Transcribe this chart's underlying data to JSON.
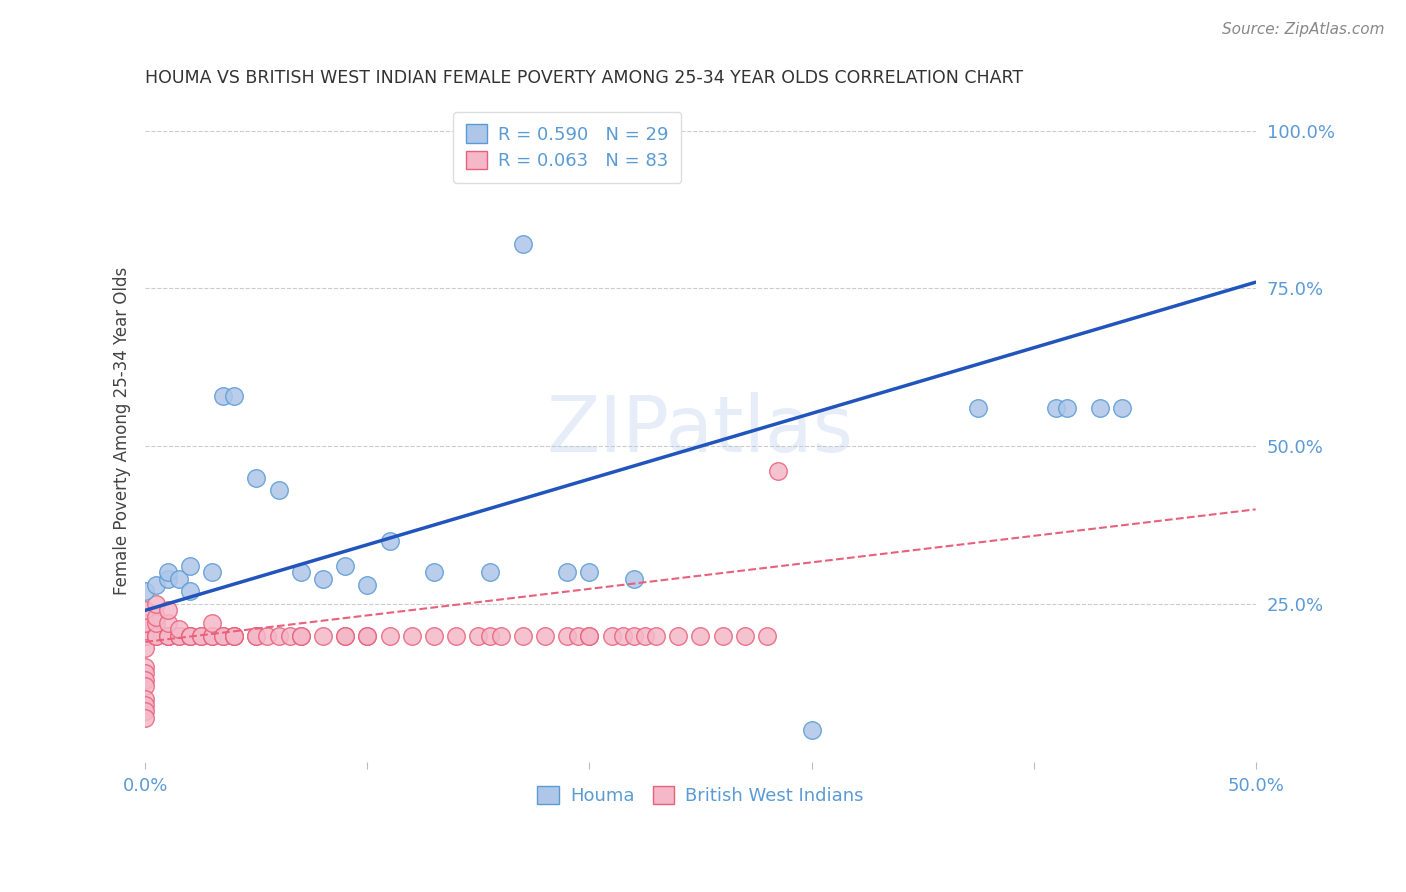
{
  "title": "HOUMA VS BRITISH WEST INDIAN FEMALE POVERTY AMONG 25-34 YEAR OLDS CORRELATION CHART",
  "source": "Source: ZipAtlas.com",
  "ylabel": "Female Poverty Among 25-34 Year Olds",
  "xlim": [
    0.0,
    0.5
  ],
  "ylim": [
    0.0,
    1.05
  ],
  "grid_color": "#cccccc",
  "houma_color": "#aec6e8",
  "houma_edge_color": "#5b9bd5",
  "bwi_color": "#f4b8c8",
  "bwi_edge_color": "#e8607a",
  "houma_line_color": "#2255bb",
  "bwi_line_color": "#e8607a",
  "tick_color": "#5b9bd5",
  "axis_label_color": "#444444",
  "title_color": "#333333",
  "source_color": "#888888",
  "watermark": "ZIPatlas",
  "houma_x": [
    0.0,
    0.005,
    0.01,
    0.01,
    0.015,
    0.02,
    0.02,
    0.03,
    0.035,
    0.04,
    0.05,
    0.06,
    0.07,
    0.08,
    0.09,
    0.1,
    0.11,
    0.13,
    0.155,
    0.17,
    0.19,
    0.2,
    0.22,
    0.3,
    0.375,
    0.41,
    0.415,
    0.43,
    0.44
  ],
  "houma_y": [
    0.27,
    0.28,
    0.29,
    0.3,
    0.29,
    0.27,
    0.31,
    0.3,
    0.58,
    0.58,
    0.45,
    0.43,
    0.3,
    0.29,
    0.31,
    0.28,
    0.35,
    0.3,
    0.3,
    0.82,
    0.3,
    0.3,
    0.29,
    0.05,
    0.56,
    0.56,
    0.56,
    0.56,
    0.56
  ],
  "bwi_x": [
    0.0,
    0.0,
    0.0,
    0.0,
    0.0,
    0.0,
    0.0,
    0.0,
    0.0,
    0.0,
    0.0,
    0.0,
    0.0,
    0.0,
    0.0,
    0.0,
    0.0,
    0.0,
    0.0,
    0.0,
    0.0,
    0.005,
    0.005,
    0.005,
    0.005,
    0.005,
    0.01,
    0.01,
    0.01,
    0.01,
    0.01,
    0.015,
    0.015,
    0.015,
    0.02,
    0.02,
    0.02,
    0.025,
    0.025,
    0.03,
    0.03,
    0.03,
    0.035,
    0.035,
    0.04,
    0.04,
    0.04,
    0.05,
    0.05,
    0.055,
    0.06,
    0.065,
    0.07,
    0.07,
    0.08,
    0.09,
    0.09,
    0.1,
    0.1,
    0.11,
    0.12,
    0.13,
    0.14,
    0.15,
    0.155,
    0.16,
    0.17,
    0.18,
    0.19,
    0.195,
    0.2,
    0.2,
    0.21,
    0.215,
    0.22,
    0.225,
    0.23,
    0.24,
    0.25,
    0.26,
    0.27,
    0.28,
    0.285
  ],
  "bwi_y": [
    0.2,
    0.2,
    0.2,
    0.2,
    0.2,
    0.2,
    0.2,
    0.2,
    0.2,
    0.15,
    0.14,
    0.13,
    0.12,
    0.1,
    0.09,
    0.08,
    0.07,
    0.18,
    0.22,
    0.22,
    0.24,
    0.2,
    0.2,
    0.22,
    0.23,
    0.25,
    0.2,
    0.2,
    0.2,
    0.22,
    0.24,
    0.2,
    0.2,
    0.21,
    0.2,
    0.2,
    0.2,
    0.2,
    0.2,
    0.2,
    0.2,
    0.22,
    0.2,
    0.2,
    0.2,
    0.2,
    0.2,
    0.2,
    0.2,
    0.2,
    0.2,
    0.2,
    0.2,
    0.2,
    0.2,
    0.2,
    0.2,
    0.2,
    0.2,
    0.2,
    0.2,
    0.2,
    0.2,
    0.2,
    0.2,
    0.2,
    0.2,
    0.2,
    0.2,
    0.2,
    0.2,
    0.2,
    0.2,
    0.2,
    0.2,
    0.2,
    0.2,
    0.2,
    0.2,
    0.2,
    0.2,
    0.2,
    0.46
  ],
  "houma_line_x": [
    0.0,
    0.5
  ],
  "houma_line_y": [
    0.24,
    0.76
  ],
  "bwi_line_x": [
    0.0,
    0.5
  ],
  "bwi_line_y": [
    0.19,
    0.4
  ]
}
